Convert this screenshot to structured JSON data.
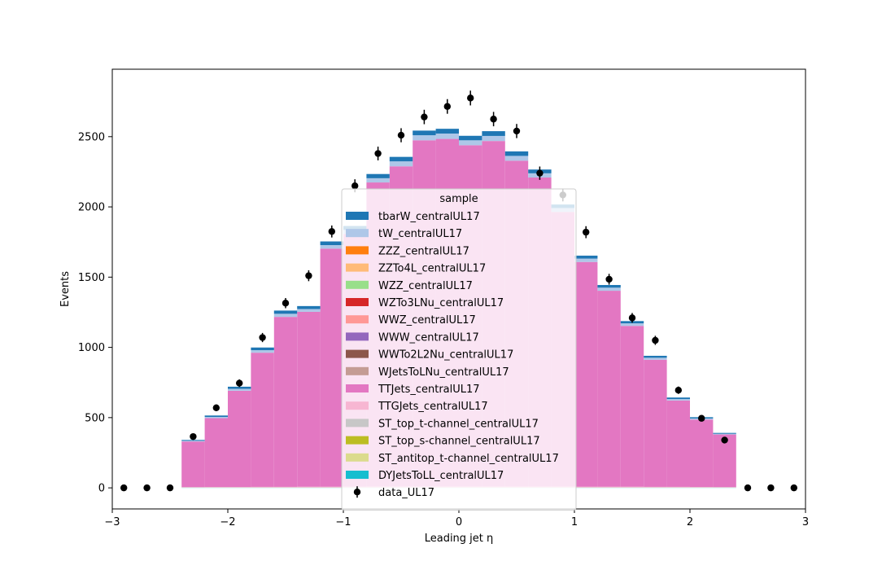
{
  "chart_data": {
    "type": "bar",
    "stacked": true,
    "xlabel": "Leading jet  η",
    "ylabel": "Events",
    "xlim": [
      -3,
      3
    ],
    "ylim": [
      -150,
      2980
    ],
    "x_ticks": [
      -3,
      -2,
      -1,
      0,
      1,
      2,
      3
    ],
    "x_tick_labels": [
      "−3",
      "−2",
      "−1",
      "0",
      "1",
      "2",
      "3"
    ],
    "y_ticks": [
      0,
      500,
      1000,
      1500,
      2000,
      2500
    ],
    "y_tick_labels": [
      "0",
      "500",
      "1000",
      "1500",
      "2000",
      "2500"
    ],
    "grid": false,
    "legend_title": "sample",
    "legend_position": "lower-center",
    "bin_edges": [
      -2.4,
      -2.2,
      -2.0,
      -1.8,
      -1.6,
      -1.4,
      -1.2,
      -1.0,
      -0.8,
      -0.6,
      -0.4,
      -0.2,
      0.0,
      0.2,
      0.4,
      0.6,
      0.8,
      1.0,
      1.2,
      1.4,
      1.6,
      1.8,
      2.0,
      2.2,
      2.4
    ],
    "series": [
      {
        "name": "DYJetsToLL_centralUL17",
        "color": "#17becf",
        "values": [
          1,
          1,
          1,
          1,
          1,
          1,
          1,
          1,
          1,
          1,
          1,
          1,
          1,
          1,
          1,
          1,
          1,
          1,
          1,
          1,
          1,
          1,
          1,
          1
        ]
      },
      {
        "name": "ST_antitop_t-channel_centralUL17",
        "color": "#dbdb8d",
        "values": [
          1,
          1,
          1,
          1,
          1,
          1,
          1,
          1,
          1,
          1,
          1,
          1,
          1,
          1,
          1,
          1,
          1,
          1,
          1,
          1,
          1,
          1,
          1,
          1
        ]
      },
      {
        "name": "ST_top_s-channel_centralUL17",
        "color": "#bcbd22",
        "values": [
          0,
          0,
          0,
          0,
          0,
          0,
          0,
          0,
          0,
          0,
          0,
          0,
          0,
          0,
          0,
          0,
          0,
          0,
          0,
          0,
          0,
          0,
          0,
          0
        ]
      },
      {
        "name": "ST_top_t-channel_centralUL17",
        "color": "#c7c7c7",
        "values": [
          1,
          1,
          1,
          1,
          1,
          1,
          1,
          1,
          1,
          1,
          1,
          1,
          1,
          1,
          1,
          1,
          1,
          1,
          1,
          1,
          1,
          1,
          1,
          1
        ]
      },
      {
        "name": "TTGJets_centralUL17",
        "color": "#f7b6d2",
        "values": [
          2,
          3,
          3,
          4,
          4,
          5,
          5,
          5,
          6,
          6,
          6,
          6,
          6,
          6,
          6,
          6,
          6,
          5,
          5,
          5,
          4,
          4,
          3,
          2
        ]
      },
      {
        "name": "TTJets_centralUL17",
        "color": "#e377c2",
        "values": [
          325,
          490,
          685,
          955,
          1210,
          1245,
          1695,
          1800,
          2165,
          2280,
          2465,
          2475,
          2430,
          2460,
          2320,
          2200,
          1955,
          1600,
          1395,
          1145,
          905,
          615,
          480,
          375
        ]
      },
      {
        "name": "WJetsToLNu_centralUL17",
        "color": "#c49c94",
        "values": [
          0,
          0,
          0,
          0,
          0,
          0,
          0,
          0,
          0,
          0,
          0,
          0,
          0,
          0,
          0,
          0,
          0,
          0,
          0,
          0,
          0,
          0,
          0,
          0
        ]
      },
      {
        "name": "WWTo2L2Nu_centralUL17",
        "color": "#8c564b",
        "values": [
          0,
          0,
          0,
          0,
          0,
          0,
          0,
          0,
          0,
          0,
          0,
          0,
          0,
          0,
          0,
          0,
          0,
          0,
          0,
          0,
          0,
          0,
          0,
          0
        ]
      },
      {
        "name": "WWW_centralUL17",
        "color": "#9467bd",
        "values": [
          0,
          0,
          0,
          0,
          0,
          0,
          0,
          0,
          0,
          0,
          0,
          0,
          0,
          0,
          0,
          0,
          0,
          0,
          0,
          0,
          0,
          0,
          0,
          0
        ]
      },
      {
        "name": "WWZ_centralUL17",
        "color": "#ff9896",
        "values": [
          0,
          0,
          0,
          0,
          0,
          0,
          0,
          0,
          0,
          0,
          0,
          0,
          0,
          0,
          0,
          0,
          0,
          0,
          0,
          0,
          0,
          0,
          0,
          0
        ]
      },
      {
        "name": "WZTo3LNu_centralUL17",
        "color": "#d62728",
        "values": [
          0,
          0,
          0,
          0,
          0,
          0,
          0,
          0,
          0,
          0,
          0,
          0,
          0,
          0,
          0,
          0,
          0,
          0,
          0,
          0,
          0,
          0,
          0,
          0
        ]
      },
      {
        "name": "WZZ_centralUL17",
        "color": "#98df8a",
        "values": [
          0,
          0,
          0,
          0,
          0,
          0,
          0,
          0,
          0,
          0,
          0,
          0,
          0,
          0,
          0,
          0,
          0,
          0,
          0,
          0,
          0,
          0,
          0,
          0
        ]
      },
      {
        "name": "ZZTo4L_centralUL17",
        "color": "#ffbb78",
        "values": [
          0,
          0,
          0,
          0,
          0,
          0,
          0,
          0,
          0,
          0,
          0,
          0,
          0,
          0,
          0,
          0,
          0,
          0,
          0,
          0,
          0,
          0,
          0,
          0
        ]
      },
      {
        "name": "ZZZ_centralUL17",
        "color": "#ff7f0e",
        "values": [
          0,
          0,
          0,
          0,
          0,
          0,
          0,
          0,
          0,
          0,
          0,
          0,
          0,
          0,
          0,
          0,
          0,
          0,
          0,
          0,
          0,
          0,
          0,
          0
        ]
      },
      {
        "name": "tW_centralUL17",
        "color": "#aec7e8",
        "values": [
          5,
          9,
          14,
          18,
          22,
          20,
          25,
          28,
          30,
          35,
          36,
          38,
          35,
          36,
          34,
          30,
          28,
          24,
          22,
          18,
          14,
          10,
          8,
          5
        ]
      },
      {
        "name": "tbarW_centralUL17",
        "color": "#1f77b4",
        "values": [
          6,
          10,
          15,
          19,
          23,
          21,
          26,
          28,
          30,
          32,
          33,
          34,
          32,
          34,
          32,
          27,
          25,
          21,
          19,
          16,
          14,
          11,
          9,
          6
        ]
      }
    ],
    "data_points": {
      "name": "data_UL17",
      "color": "#000000",
      "x": [
        -2.9,
        -2.7,
        -2.5,
        -2.3,
        -2.1,
        -1.9,
        -1.7,
        -1.5,
        -1.3,
        -1.1,
        -0.9,
        -0.7,
        -0.5,
        -0.3,
        -0.1,
        0.1,
        0.3,
        0.5,
        0.7,
        0.9,
        1.1,
        1.3,
        1.5,
        1.7,
        1.9,
        2.1,
        2.3,
        2.5,
        2.7,
        2.9
      ],
      "y": [
        0,
        0,
        0,
        365,
        570,
        745,
        1070,
        1315,
        1510,
        1825,
        2150,
        2380,
        2510,
        2640,
        2715,
        2775,
        2625,
        2540,
        2240,
        2085,
        1820,
        1485,
        1210,
        1050,
        695,
        495,
        340,
        0,
        0,
        0
      ]
    }
  }
}
